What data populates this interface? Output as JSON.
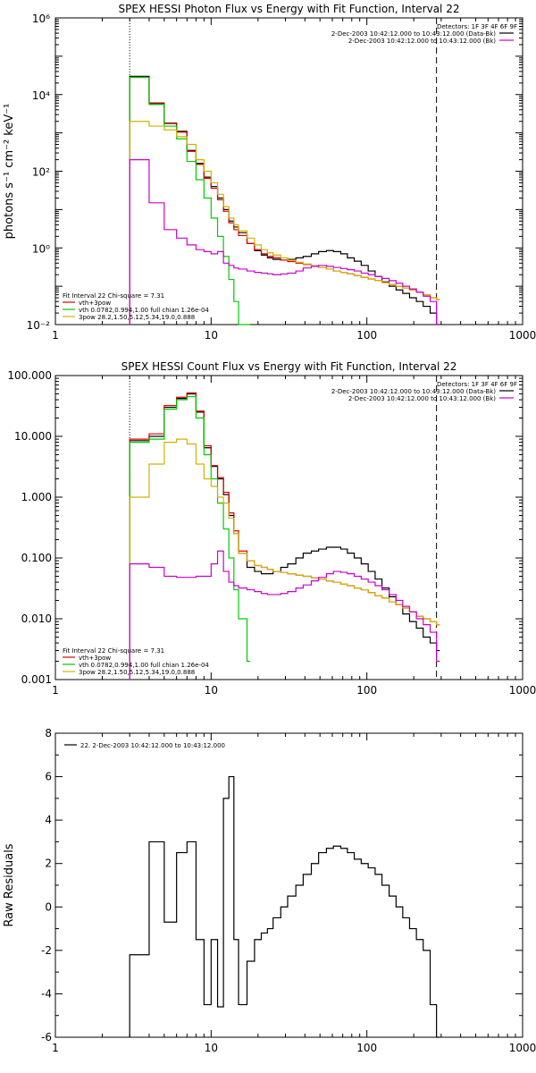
{
  "chart_data": [
    {
      "type": "line",
      "title": "SPEX HESSI Photon Flux vs Energy with Fit Function, Interval 22",
      "xlabel": "",
      "ylabel": "photons s⁻¹ cm⁻² keV⁻¹",
      "xscale": "log",
      "yscale": "log",
      "xlim": [
        1,
        1000
      ],
      "ylim": [
        0.01,
        1000000
      ],
      "xticks": [
        1,
        10,
        100,
        1000
      ],
      "xtick_labels": [
        "1",
        "10",
        "100",
        "1000"
      ],
      "yticks": [
        0.01,
        1,
        100,
        10000,
        1000000
      ],
      "ytick_labels": [
        "10⁻²",
        "10⁰",
        "10²",
        "10⁴",
        "10⁶"
      ],
      "ytick_base": "10",
      "ytick_exp": [
        "-2",
        "0",
        "2",
        "4",
        "6"
      ],
      "vlines": [
        {
          "x": 3,
          "style": "dotted"
        },
        {
          "x": 280,
          "style": "dashed"
        }
      ],
      "legend_tr": {
        "header": "Detectors: 1F 3F 4F 6F 9F",
        "entries": [
          {
            "label": "2-Dec-2003 10:42:12.000 to 10:43:12.000 (Data-Bk)",
            "color": "#000000"
          },
          {
            "label": "2-Dec-2003 10:42:12.000 to 10:43:12.000 (Bk)",
            "color": "#cc00cc"
          }
        ]
      },
      "legend_bl": {
        "header": "Fit Interval 22   Chi-square = 7.31",
        "entries": [
          {
            "label": "vth+3pow",
            "color": "#dd0000"
          },
          {
            "label": "vth 0.0782,0.994,1.00  full chian 1.26e-04",
            "color": "#00cc00"
          },
          {
            "label": "3pow 28.2,1.50,5.12,5.34,19.0,0.888",
            "color": "#d4b000"
          }
        ]
      },
      "series": [
        {
          "color": "#000000",
          "x": [
            3,
            4,
            5,
            6,
            7,
            8,
            9,
            10,
            11,
            12,
            13,
            14,
            15,
            17,
            19,
            21,
            23,
            25,
            28,
            31,
            35,
            39,
            44,
            49,
            55,
            61,
            68,
            75,
            83,
            92,
            102,
            113,
            125,
            139,
            154,
            170,
            188,
            208,
            230,
            255,
            280
          ],
          "y": [
            30000,
            6000,
            1800,
            1100,
            350,
            160,
            70,
            40,
            20,
            10,
            5,
            3.5,
            2.5,
            1.3,
            0.85,
            0.65,
            0.55,
            0.5,
            0.48,
            0.5,
            0.55,
            0.6,
            0.7,
            0.8,
            0.85,
            0.8,
            0.7,
            0.55,
            0.45,
            0.35,
            0.25,
            0.18,
            0.13,
            0.1,
            0.08,
            0.065,
            0.05,
            0.04,
            0.03,
            0.02,
            0.01
          ]
        },
        {
          "color": "#dd0000",
          "x": [
            3,
            4,
            5,
            6,
            7,
            8,
            9,
            10,
            11,
            12,
            13,
            14,
            15,
            17,
            19,
            21,
            23,
            25,
            28,
            31,
            35,
            39,
            44,
            49,
            55,
            61,
            68,
            75,
            83,
            92,
            102,
            113,
            125,
            139,
            154,
            170,
            188,
            208,
            230,
            255,
            280
          ],
          "y": [
            28000,
            5800,
            1750,
            1050,
            330,
            150,
            65,
            36,
            18,
            9,
            4.5,
            3.0,
            2.1,
            1.3,
            0.9,
            0.7,
            0.6,
            0.55,
            0.48,
            0.44,
            0.4,
            0.37,
            0.34,
            0.31,
            0.28,
            0.25,
            0.23,
            0.21,
            0.19,
            0.17,
            0.155,
            0.14,
            0.125,
            0.11,
            0.1,
            0.09,
            0.08,
            0.07,
            0.06,
            0.05,
            0.045
          ]
        },
        {
          "color": "#00cc00",
          "x": [
            3,
            4,
            5,
            6,
            7,
            8,
            9,
            10,
            11,
            12,
            13,
            14,
            15,
            17
          ],
          "y": [
            28000,
            5500,
            1500,
            700,
            180,
            60,
            20,
            6,
            2,
            0.6,
            0.15,
            0.04,
            0.01,
            0.002
          ]
        },
        {
          "color": "#d4b000",
          "x": [
            3,
            4,
            5,
            6,
            7,
            8,
            9,
            10,
            11,
            12,
            13,
            14,
            15,
            17,
            19,
            21,
            23,
            25,
            28,
            31,
            35,
            39,
            44,
            49,
            55,
            61,
            68,
            75,
            83,
            92,
            102,
            113,
            125,
            139,
            154,
            170,
            188,
            208,
            230,
            255,
            280
          ],
          "y": [
            2000,
            1500,
            1200,
            800,
            500,
            200,
            100,
            50,
            25,
            12,
            6,
            4,
            2.8,
            1.8,
            1.2,
            0.9,
            0.75,
            0.65,
            0.55,
            0.48,
            0.42,
            0.38,
            0.34,
            0.31,
            0.28,
            0.25,
            0.23,
            0.21,
            0.19,
            0.17,
            0.155,
            0.14,
            0.125,
            0.11,
            0.1,
            0.09,
            0.08,
            0.07,
            0.06,
            0.05,
            0.045
          ]
        },
        {
          "color": "#cc00cc",
          "x": [
            3,
            4,
            5,
            6,
            7,
            8,
            9,
            10,
            11,
            12,
            13,
            14,
            15,
            17,
            19,
            21,
            23,
            25,
            28,
            31,
            35,
            39,
            44,
            49,
            55,
            61,
            68,
            75,
            83,
            92,
            102,
            113,
            125,
            139,
            154,
            170,
            188,
            208,
            230,
            255,
            280
          ],
          "y": [
            200,
            15,
            3,
            1.8,
            1.2,
            0.9,
            0.8,
            0.7,
            0.8,
            0.4,
            0.35,
            0.3,
            0.28,
            0.25,
            0.23,
            0.22,
            0.21,
            0.2,
            0.21,
            0.22,
            0.25,
            0.3,
            0.33,
            0.35,
            0.33,
            0.31,
            0.29,
            0.27,
            0.25,
            0.22,
            0.2,
            0.18,
            0.16,
            0.14,
            0.12,
            0.1,
            0.085,
            0.07,
            0.055,
            0.04,
            0.01
          ]
        }
      ]
    },
    {
      "type": "line",
      "title": "SPEX HESSI Count Flux vs Energy with Fit Function, Interval 22",
      "xlabel": "",
      "ylabel": "",
      "xscale": "log",
      "yscale": "log",
      "xlim": [
        1,
        1000
      ],
      "ylim": [
        0.001,
        100
      ],
      "xticks": [
        1,
        10,
        100,
        1000
      ],
      "xtick_labels": [
        "1",
        "10",
        "100",
        "1000"
      ],
      "yticks": [
        0.001,
        0.01,
        0.1,
        1,
        10,
        100
      ],
      "ytick_labels": [
        "0.001",
        "0.010",
        "0.100",
        "1.000",
        "10.000",
        "100.000"
      ],
      "vlines": [
        {
          "x": 3,
          "style": "dotted"
        },
        {
          "x": 280,
          "style": "dashed"
        }
      ],
      "legend_tr": {
        "header": "Detectors: 1F 3F 4F 6F 9F",
        "entries": [
          {
            "label": "2-Dec-2003 10:42:12.000 to 10:43:12.000 (Data-Bk)",
            "color": "#000000"
          },
          {
            "label": "2-Dec-2003 10:42:12.000 to 10:43:12.000 (Bk)",
            "color": "#cc00cc"
          }
        ]
      },
      "legend_bl": {
        "header": "Fit Interval 22   Chi-square = 7.31",
        "entries": [
          {
            "label": "vth+3pow",
            "color": "#dd0000"
          },
          {
            "label": "vth 0.0782,0.994,1.00  full chian 1.26e-04",
            "color": "#00cc00"
          },
          {
            "label": "3pow 28.2,1.50,5.12,5.34,19.0,0.888",
            "color": "#d4b000"
          }
        ]
      },
      "series": [
        {
          "color": "#000000",
          "x": [
            3,
            4,
            5,
            6,
            7,
            8,
            9,
            10,
            11,
            12,
            13,
            14,
            15,
            17,
            19,
            21,
            23,
            25,
            28,
            31,
            35,
            39,
            44,
            49,
            55,
            61,
            68,
            75,
            83,
            92,
            102,
            113,
            125,
            139,
            154,
            170,
            188,
            208,
            230,
            255,
            280
          ],
          "y": [
            8.5,
            10,
            30,
            42,
            50,
            25,
            6.5,
            3.2,
            2,
            1.1,
            0.5,
            0.25,
            0.12,
            0.07,
            0.06,
            0.055,
            0.055,
            0.06,
            0.07,
            0.08,
            0.1,
            0.12,
            0.13,
            0.14,
            0.15,
            0.15,
            0.14,
            0.12,
            0.1,
            0.08,
            0.06,
            0.045,
            0.032,
            0.023,
            0.017,
            0.012,
            0.009,
            0.007,
            0.005,
            0.004,
            0.003
          ]
        },
        {
          "color": "#dd0000",
          "x": [
            3,
            4,
            5,
            6,
            7,
            8,
            9,
            10,
            11,
            12,
            13,
            14,
            15,
            17,
            19,
            21,
            23,
            25,
            28,
            31,
            35,
            39,
            44,
            49,
            55,
            61,
            68,
            75,
            83,
            92,
            102,
            113,
            125,
            139,
            154,
            170,
            188,
            208,
            230,
            255,
            280
          ],
          "y": [
            9,
            11,
            32,
            44,
            52,
            26,
            7,
            3.3,
            2.1,
            1.2,
            0.55,
            0.28,
            0.13,
            0.09,
            0.075,
            0.07,
            0.065,
            0.06,
            0.058,
            0.055,
            0.052,
            0.05,
            0.047,
            0.045,
            0.042,
            0.04,
            0.037,
            0.035,
            0.032,
            0.03,
            0.027,
            0.024,
            0.022,
            0.019,
            0.017,
            0.015,
            0.013,
            0.011,
            0.01,
            0.009,
            0.008
          ]
        },
        {
          "color": "#00cc00",
          "x": [
            3,
            4,
            5,
            6,
            7,
            8,
            9,
            10,
            11,
            12,
            13,
            14,
            15,
            17
          ],
          "y": [
            8,
            9,
            28,
            40,
            45,
            20,
            5,
            2,
            0.8,
            0.3,
            0.1,
            0.03,
            0.01,
            0.002
          ]
        },
        {
          "color": "#d4b000",
          "x": [
            3,
            4,
            5,
            6,
            7,
            8,
            9,
            10,
            11,
            12,
            13,
            14,
            15,
            17,
            19,
            21,
            23,
            25,
            28,
            31,
            35,
            39,
            44,
            49,
            55,
            61,
            68,
            75,
            83,
            92,
            102,
            113,
            125,
            139,
            154,
            170,
            188,
            208,
            230,
            255,
            280
          ],
          "y": [
            1,
            3.5,
            8,
            9,
            7.5,
            3.5,
            2,
            1.5,
            1,
            0.8,
            0.45,
            0.25,
            0.12,
            0.09,
            0.075,
            0.07,
            0.065,
            0.06,
            0.058,
            0.055,
            0.052,
            0.05,
            0.047,
            0.045,
            0.042,
            0.04,
            0.037,
            0.035,
            0.032,
            0.03,
            0.027,
            0.024,
            0.022,
            0.019,
            0.017,
            0.015,
            0.013,
            0.011,
            0.01,
            0.009,
            0.008
          ]
        },
        {
          "color": "#cc00cc",
          "x": [
            3,
            4,
            5,
            6,
            7,
            8,
            9,
            10,
            11,
            12,
            13,
            14,
            15,
            17,
            19,
            21,
            23,
            25,
            28,
            31,
            35,
            39,
            44,
            49,
            55,
            61,
            68,
            75,
            83,
            92,
            102,
            113,
            125,
            139,
            154,
            170,
            188,
            208,
            230,
            255,
            280
          ],
          "y": [
            0.08,
            0.07,
            0.05,
            0.048,
            0.048,
            0.05,
            0.05,
            0.08,
            0.13,
            0.06,
            0.04,
            0.035,
            0.032,
            0.03,
            0.028,
            0.026,
            0.025,
            0.025,
            0.026,
            0.028,
            0.032,
            0.036,
            0.042,
            0.048,
            0.055,
            0.06,
            0.058,
            0.055,
            0.05,
            0.045,
            0.04,
            0.035,
            0.03,
            0.025,
            0.02,
            0.016,
            0.013,
            0.01,
            0.008,
            0.006,
            0.002
          ]
        }
      ]
    },
    {
      "type": "line",
      "title": "",
      "xlabel": "",
      "ylabel": "Raw Residuals",
      "xscale": "log",
      "yscale": "linear",
      "xlim": [
        1,
        1000
      ],
      "ylim": [
        -6,
        8
      ],
      "xticks": [
        1,
        10,
        100,
        1000
      ],
      "xtick_labels": [
        "1",
        "10",
        "100",
        "1000"
      ],
      "yticks": [
        -6,
        -4,
        -2,
        0,
        2,
        4,
        6,
        8
      ],
      "ytick_labels": [
        "-6",
        "-4",
        "-2",
        "0",
        "2",
        "4",
        "6",
        "8"
      ],
      "legend_tl": {
        "entries": [
          {
            "label": "22. 2-Dec-2003 10:42:12.000 to 10:43:12.000",
            "color": "#000000"
          }
        ]
      },
      "series": [
        {
          "color": "#000000",
          "x": [
            3,
            4,
            5,
            6,
            7,
            8,
            9,
            10,
            11,
            12,
            13,
            14,
            15,
            17,
            19,
            21,
            23,
            25,
            28,
            31,
            35,
            39,
            44,
            49,
            55,
            61,
            68,
            75,
            83,
            92,
            102,
            113,
            125,
            139,
            154,
            170,
            188,
            208,
            230,
            255,
            280
          ],
          "y": [
            -2.2,
            3,
            -0.7,
            2.5,
            3,
            -1.5,
            -4.5,
            -1.5,
            -4.6,
            5,
            6,
            -1.5,
            -4.5,
            -2.5,
            -1.5,
            -1.2,
            -1.0,
            -0.5,
            0.0,
            0.5,
            1.0,
            1.5,
            2.0,
            2.5,
            2.7,
            2.8,
            2.7,
            2.5,
            2.2,
            2.0,
            1.8,
            1.5,
            1.0,
            0.5,
            0.0,
            -0.5,
            -1.0,
            -1.5,
            -2.0,
            -4.5,
            -6
          ]
        }
      ]
    }
  ]
}
